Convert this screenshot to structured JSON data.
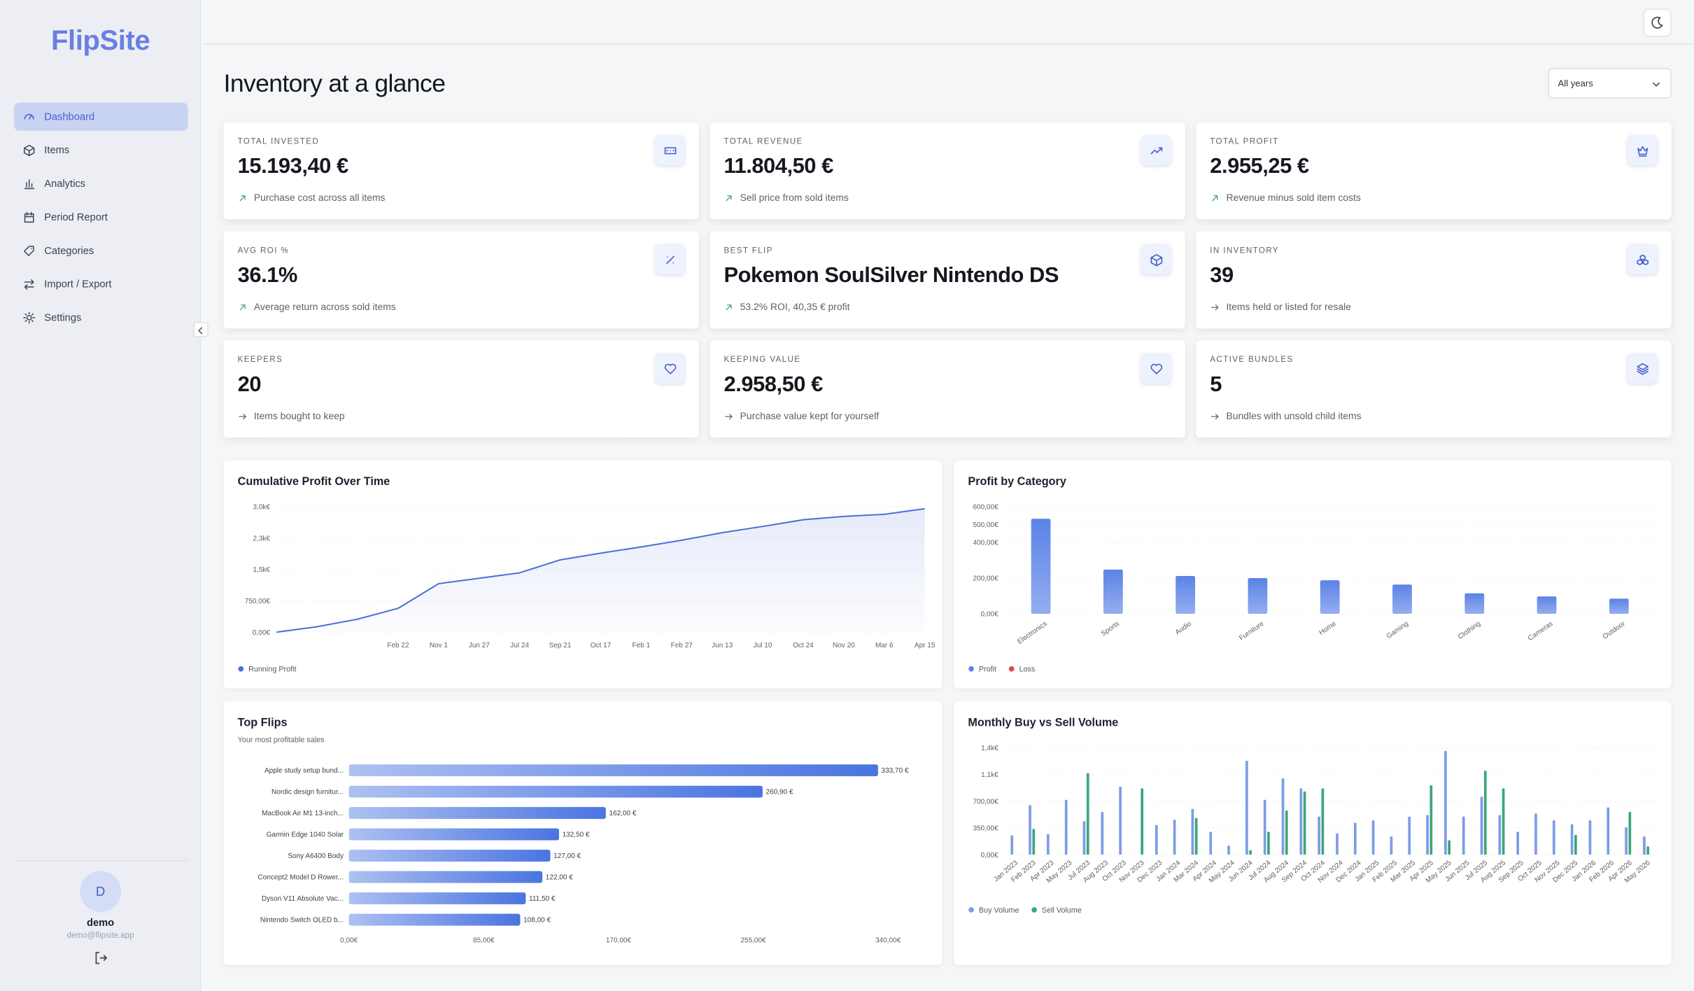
{
  "sidebar": {
    "brand": "FlipSite",
    "nav": [
      "Dashboard",
      "Items",
      "Analytics",
      "Period Report",
      "Categories",
      "Import / Export",
      "Settings"
    ],
    "active": 0,
    "user": {
      "initial": "D",
      "name": "demo",
      "email": "demo@flipsite.app"
    }
  },
  "header": {
    "title": "Inventory at a glance",
    "year_filter": "All years"
  },
  "cards": [
    {
      "label": "TOTAL INVESTED",
      "value": "15.193,40 €",
      "description": "Purchase cost across all items"
    },
    {
      "label": "TOTAL REVENUE",
      "value": "11.804,50 €",
      "description": "Sell price from sold items"
    },
    {
      "label": "TOTAL PROFIT",
      "value": "2.955,25 €",
      "description": "Revenue minus sold item costs"
    },
    {
      "label": "AVG ROI %",
      "value": "36.1%",
      "description": "Average return across sold items"
    },
    {
      "label": "BEST FLIP",
      "value": "Pokemon SoulSilver Nintendo DS",
      "description": "53.2% ROI, 40,35 € profit"
    },
    {
      "label": "IN INVENTORY",
      "value": "39",
      "description": "Items held or listed for resale"
    },
    {
      "label": "KEEPERS",
      "value": "20",
      "description": "Items bought to keep"
    },
    {
      "label": "KEEPING VALUE",
      "value": "2.958,50 €",
      "description": "Purchase value kept for yourself"
    },
    {
      "label": "ACTIVE BUNDLES",
      "value": "5",
      "description": "Bundles with unsold child items"
    }
  ],
  "chart_data": [
    {
      "type": "line",
      "title": "Cumulative Profit Over Time",
      "categories": [
        null,
        null,
        null,
        "Feb 22",
        "Nov 1",
        "Jun 27",
        "Jul 24",
        "Sep 21",
        "Oct 17",
        "Feb 1",
        "Feb 27",
        "Jun 13",
        "Jul 10",
        "Oct 24",
        "Nov 20",
        "Mar 6",
        "Apr 15"
      ],
      "series": [
        {
          "name": "Running Profit",
          "color": "#4a6fd6",
          "values": [
            0,
            130,
            310,
            570,
            1160,
            1290,
            1420,
            1730,
            1890,
            2040,
            2200,
            2380,
            2530,
            2690,
            2770,
            2820,
            2955
          ]
        }
      ],
      "ylim": [
        0,
        3000
      ],
      "yticks": [
        {
          "value": 0,
          "label": "0,00€"
        },
        {
          "value": 750,
          "label": "750,00€"
        },
        {
          "value": 1500,
          "label": "1,5k€"
        },
        {
          "value": 2250,
          "label": "2,3k€"
        },
        {
          "value": 3000,
          "label": "3,0k€"
        }
      ],
      "grid": true
    },
    {
      "type": "bar",
      "title": "Profit by Category",
      "categories": [
        "Electronics",
        "Sports",
        "Audio",
        "Furniture",
        "Home",
        "Gaming",
        "Clothing",
        "Cameras",
        "Outdoor"
      ],
      "series": [
        {
          "name": "Profit",
          "color": "#5b82e6",
          "values": [
            533,
            248,
            212,
            200,
            188,
            164,
            115,
            97,
            85
          ]
        },
        {
          "name": "Loss",
          "color": "#e04848",
          "values": [
            0,
            0,
            0,
            0,
            0,
            0,
            0,
            0,
            0
          ]
        }
      ],
      "ylim": [
        0,
        600
      ],
      "yticks": [
        {
          "value": 0,
          "label": "0,00€"
        },
        {
          "value": 200,
          "label": "200,00€"
        },
        {
          "value": 400,
          "label": "400,00€"
        },
        {
          "value": 500,
          "label": "500,00€"
        },
        {
          "value": 600,
          "label": "600,00€"
        }
      ],
      "grid": true
    },
    {
      "type": "hbar",
      "title": "Top Flips",
      "subtitle": "Your most profitable sales",
      "categories": [
        "Apple study setup bund...",
        "Nordic design furnitur...",
        "MacBook Air M1 13-inch...",
        "Garmin Edge 1040 Solar",
        "Sony A6400 Body",
        "Concept2 Model D Rower...",
        "Dyson V11 Absolute Vac...",
        "Nintendo Switch OLED b..."
      ],
      "values": [
        333.7,
        260.9,
        162,
        132.5,
        127,
        122,
        111.5,
        108
      ],
      "value_labels": [
        "333,70 €",
        "260,90 €",
        "162,00 €",
        "132,50 €",
        "127,00 €",
        "122,00 €",
        "111,50 €",
        "108,00 €"
      ],
      "color": "#4a74e0",
      "xlim": [
        0,
        340
      ],
      "xticks": [
        {
          "value": 0,
          "label": "0,00€"
        },
        {
          "value": 85,
          "label": "85,00€"
        },
        {
          "value": 170,
          "label": "170,00€"
        },
        {
          "value": 255,
          "label": "255,00€"
        },
        {
          "value": 340,
          "label": "340,00€"
        }
      ],
      "grid": false
    },
    {
      "type": "grouped-bar",
      "title": "Monthly Buy vs Sell Volume",
      "categories": [
        "Jan 2023",
        "Feb 2023",
        "Apr 2023",
        "May 2023",
        "Jul 2023",
        "Aug 2023",
        "Oct 2023",
        "Nov 2023",
        "Dec 2023",
        "Jan 2024",
        "Mar 2024",
        "Apr 2024",
        "May 2024",
        "Jun 2024",
        "Jul 2024",
        "Aug 2024",
        "Sep 2024",
        "Oct 2024",
        "Nov 2024",
        "Dec 2024",
        "Jan 2025",
        "Feb 2025",
        "Mar 2025",
        "Apr 2025",
        "May 2025",
        "Jun 2025",
        "Jul 2025",
        "Aug 2025",
        "Sep 2025",
        "Oct 2025",
        "Nov 2025",
        "Dec 2025",
        "Jan 2026",
        "Feb 2026",
        "Apr 2026",
        "May 2026"
      ],
      "series": [
        {
          "name": "Buy Volume",
          "color": "#7d9be8",
          "values": [
            254,
            650,
            270,
            720,
            440,
            560,
            890,
            0,
            390,
            460,
            600,
            300,
            120,
            1230,
            720,
            1000,
            870,
            500,
            280,
            420,
            450,
            240,
            500,
            520,
            1360,
            500,
            760,
            520,
            300,
            540,
            450,
            400,
            450,
            620,
            360,
            240
          ]
        },
        {
          "name": "Sell Volume",
          "color": "#3aa877",
          "values": [
            0,
            340,
            0,
            0,
            1070,
            0,
            0,
            870,
            0,
            0,
            480,
            0,
            0,
            60,
            300,
            580,
            830,
            870,
            0,
            0,
            0,
            0,
            0,
            910,
            190,
            0,
            1100,
            870,
            0,
            0,
            0,
            260,
            0,
            0,
            560,
            110
          ]
        }
      ],
      "ylim": [
        0,
        1400
      ],
      "yticks": [
        {
          "value": 0,
          "label": "0,00€"
        },
        {
          "value": 350,
          "label": "350,00€"
        },
        {
          "value": 700,
          "label": "700,00€"
        },
        {
          "value": 1050,
          "label": "1,1k€"
        },
        {
          "value": 1400,
          "label": "1,4k€"
        }
      ],
      "grid": true
    }
  ]
}
